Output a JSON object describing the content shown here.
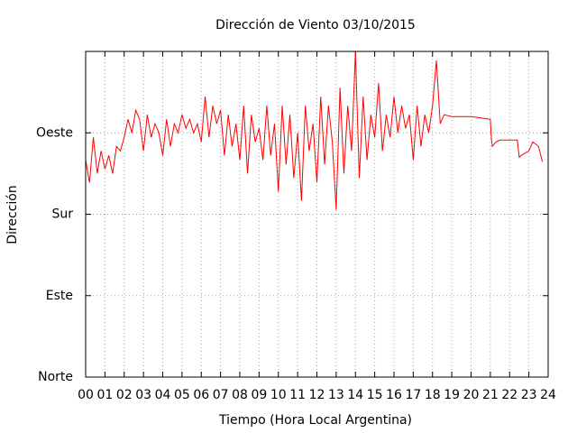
{
  "chart_data": {
    "type": "line",
    "title": "Dirección de Viento 03/10/2015",
    "xlabel": "Tiempo (Hora Local Argentina)",
    "ylabel": "Dirección",
    "xlim": [
      0,
      24
    ],
    "xticks": [
      {
        "value": 0,
        "label": "00"
      },
      {
        "value": 1,
        "label": "01"
      },
      {
        "value": 2,
        "label": "02"
      },
      {
        "value": 3,
        "label": "03"
      },
      {
        "value": 4,
        "label": "04"
      },
      {
        "value": 5,
        "label": "05"
      },
      {
        "value": 6,
        "label": "06"
      },
      {
        "value": 7,
        "label": "07"
      },
      {
        "value": 8,
        "label": "08"
      },
      {
        "value": 9,
        "label": "09"
      },
      10,
      11,
      12,
      13,
      14,
      15,
      16,
      17,
      18,
      19,
      20,
      21,
      22,
      23,
      24
    ],
    "ylim": [
      0,
      360
    ],
    "yticks": [
      {
        "value": 0,
        "label": "Norte"
      },
      {
        "value": 90,
        "label": "Este"
      },
      {
        "value": 180,
        "label": "Sur"
      },
      {
        "value": 270,
        "label": "Oeste"
      }
    ],
    "grid": true,
    "series": [
      {
        "color": "#ff0000",
        "x": [
          0.0,
          0.2,
          0.4,
          0.6,
          0.8,
          1.0,
          1.2,
          1.4,
          1.6,
          1.8,
          2.0,
          2.2,
          2.4,
          2.6,
          2.8,
          3.0,
          3.2,
          3.4,
          3.6,
          3.8,
          4.0,
          4.2,
          4.4,
          4.6,
          4.8,
          5.0,
          5.2,
          5.4,
          5.6,
          5.8,
          6.0,
          6.2,
          6.4,
          6.6,
          6.8,
          7.0,
          7.2,
          7.4,
          7.6,
          7.8,
          8.0,
          8.2,
          8.4,
          8.6,
          8.8,
          9.0,
          9.2,
          9.4,
          9.6,
          9.8,
          10.0,
          10.2,
          10.4,
          10.6,
          10.8,
          11.0,
          11.2,
          11.4,
          11.6,
          11.8,
          12.0,
          12.2,
          12.4,
          12.6,
          12.8,
          13.0,
          13.2,
          13.4,
          13.6,
          13.8,
          14.0,
          14.2,
          14.4,
          14.6,
          14.8,
          15.0,
          15.2,
          15.4,
          15.6,
          15.8,
          16.0,
          16.2,
          16.4,
          16.6,
          16.8,
          17.0,
          17.2,
          17.4,
          17.6,
          17.8,
          18.0,
          18.2,
          18.4,
          18.6,
          19,
          20,
          21,
          21.05,
          21.1,
          21.3,
          21.5,
          22,
          22.4,
          22.5,
          22.6,
          23,
          23.2,
          23.5,
          23.7
        ],
        "values": [
          240,
          215,
          265,
          225,
          250,
          230,
          245,
          225,
          255,
          250,
          265,
          285,
          270,
          295,
          285,
          250,
          290,
          265,
          280,
          270,
          245,
          285,
          255,
          280,
          270,
          290,
          275,
          285,
          270,
          280,
          260,
          310,
          265,
          300,
          280,
          295,
          245,
          290,
          255,
          280,
          240,
          300,
          225,
          290,
          260,
          275,
          240,
          300,
          245,
          280,
          205,
          300,
          235,
          290,
          220,
          270,
          195,
          300,
          250,
          280,
          215,
          310,
          235,
          300,
          260,
          185,
          320,
          225,
          300,
          250,
          360,
          220,
          310,
          240,
          290,
          265,
          325,
          250,
          290,
          265,
          310,
          270,
          300,
          275,
          290,
          240,
          300,
          255,
          290,
          270,
          300,
          350,
          280,
          290,
          288,
          288,
          285,
          265,
          255,
          260,
          262,
          262,
          262,
          243,
          245,
          250,
          260,
          255,
          238
        ]
      }
    ]
  }
}
